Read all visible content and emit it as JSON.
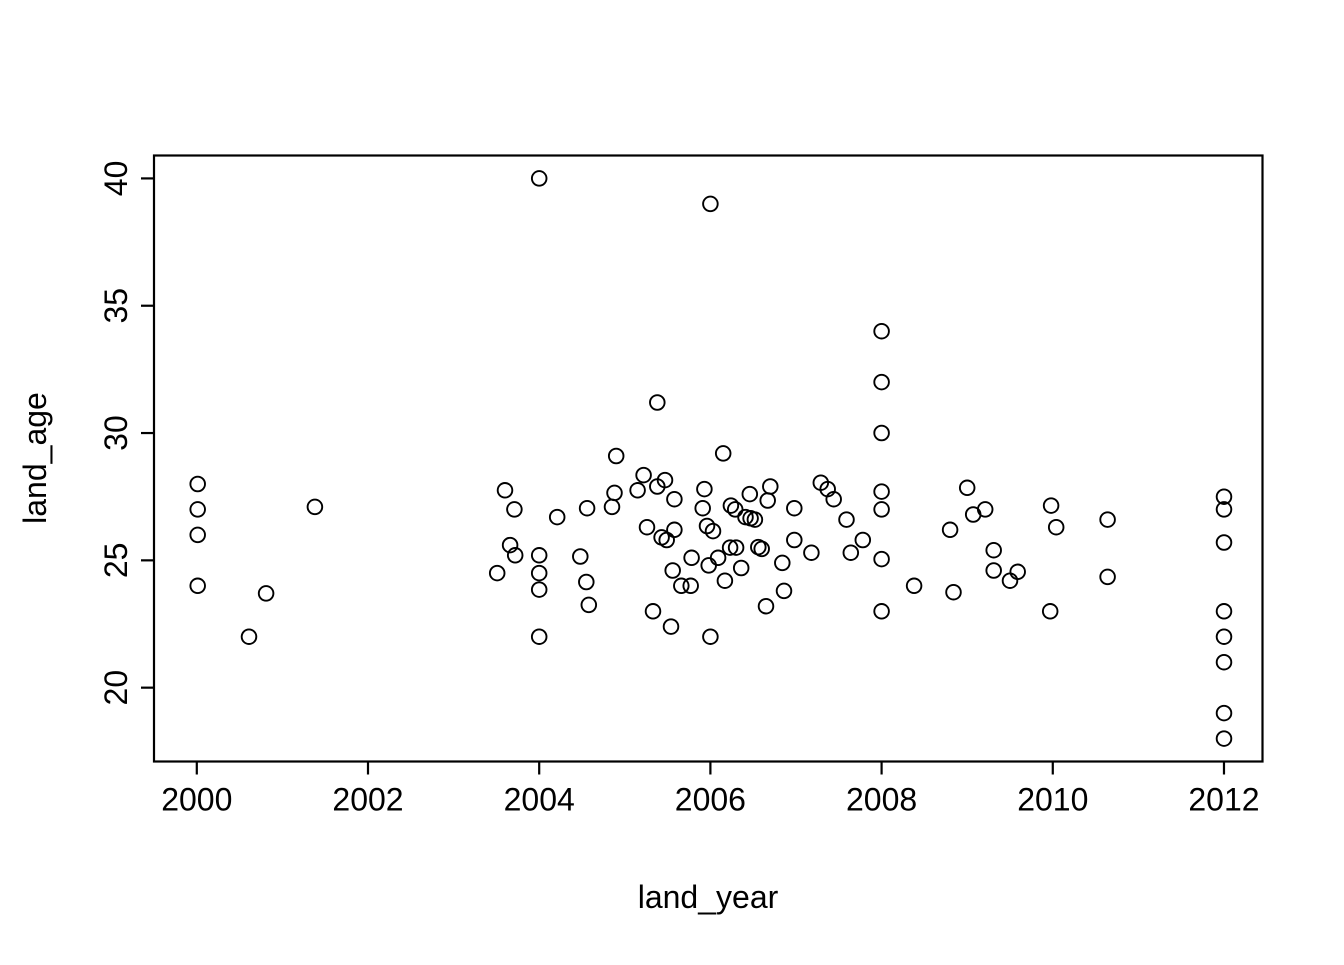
{
  "chart_data": {
    "type": "scatter",
    "title": "",
    "xlabel": "land_year",
    "ylabel": "land_age",
    "x_ticks": [
      2000,
      2002,
      2004,
      2006,
      2008,
      2010,
      2012
    ],
    "y_ticks": [
      20,
      25,
      30,
      35,
      40
    ],
    "xlim": [
      1999.5,
      2012.45
    ],
    "ylim": [
      17.1,
      40.9
    ],
    "grid": false,
    "legend": "none",
    "marker": "open-circle",
    "marker_color": "#000000",
    "background_color": "#ffffff",
    "points": [
      [
        2000.01,
        28.0
      ],
      [
        2000.01,
        27.0
      ],
      [
        2000.01,
        26.0
      ],
      [
        2000.01,
        24.0
      ],
      [
        2000.61,
        22.0
      ],
      [
        2000.81,
        23.7
      ],
      [
        2001.38,
        27.1
      ],
      [
        2003.51,
        24.5
      ],
      [
        2003.6,
        27.75
      ],
      [
        2003.66,
        25.6
      ],
      [
        2003.71,
        27.0
      ],
      [
        2003.72,
        25.2
      ],
      [
        2004.0,
        40.0
      ],
      [
        2004.0,
        25.2
      ],
      [
        2004.0,
        24.5
      ],
      [
        2004.0,
        23.85
      ],
      [
        2004.0,
        22.0
      ],
      [
        2004.21,
        26.7
      ],
      [
        2004.48,
        25.15
      ],
      [
        2004.56,
        27.05
      ],
      [
        2004.55,
        24.15
      ],
      [
        2004.58,
        23.25
      ],
      [
        2004.85,
        27.1
      ],
      [
        2004.88,
        27.65
      ],
      [
        2004.9,
        29.1
      ],
      [
        2005.15,
        27.75
      ],
      [
        2005.22,
        28.35
      ],
      [
        2005.26,
        26.3
      ],
      [
        2005.33,
        23.0
      ],
      [
        2005.38,
        31.2
      ],
      [
        2005.38,
        27.9
      ],
      [
        2005.43,
        25.9
      ],
      [
        2005.47,
        28.15
      ],
      [
        2005.49,
        25.8
      ],
      [
        2005.54,
        22.4
      ],
      [
        2005.56,
        24.6
      ],
      [
        2005.58,
        27.4
      ],
      [
        2005.58,
        26.2
      ],
      [
        2005.66,
        24.0
      ],
      [
        2005.77,
        24.0
      ],
      [
        2005.78,
        25.1
      ],
      [
        2005.91,
        27.05
      ],
      [
        2005.93,
        27.8
      ],
      [
        2005.96,
        26.35
      ],
      [
        2005.98,
        24.8
      ],
      [
        2006.0,
        39.0
      ],
      [
        2006.0,
        22.0
      ],
      [
        2006.03,
        26.15
      ],
      [
        2006.09,
        25.1
      ],
      [
        2006.15,
        29.2
      ],
      [
        2006.17,
        24.2
      ],
      [
        2006.24,
        27.15
      ],
      [
        2006.29,
        27.0
      ],
      [
        2006.23,
        25.5
      ],
      [
        2006.3,
        25.5
      ],
      [
        2006.36,
        24.7
      ],
      [
        2006.41,
        26.7
      ],
      [
        2006.47,
        26.65
      ],
      [
        2006.52,
        26.6
      ],
      [
        2006.46,
        27.6
      ],
      [
        2006.56,
        25.52
      ],
      [
        2006.6,
        25.45
      ],
      [
        2006.65,
        23.2
      ],
      [
        2006.67,
        27.35
      ],
      [
        2006.7,
        27.9
      ],
      [
        2006.84,
        24.9
      ],
      [
        2006.86,
        23.8
      ],
      [
        2006.98,
        27.05
      ],
      [
        2006.98,
        25.8
      ],
      [
        2007.18,
        25.3
      ],
      [
        2007.29,
        28.05
      ],
      [
        2007.37,
        27.8
      ],
      [
        2007.44,
        27.4
      ],
      [
        2007.59,
        26.6
      ],
      [
        2007.64,
        25.3
      ],
      [
        2007.78,
        25.8
      ],
      [
        2008.0,
        34.0
      ],
      [
        2008.0,
        32.0
      ],
      [
        2008.0,
        30.0
      ],
      [
        2008.0,
        27.7
      ],
      [
        2008.0,
        27.0
      ],
      [
        2008.0,
        25.05
      ],
      [
        2008.0,
        23.0
      ],
      [
        2008.38,
        24.0
      ],
      [
        2008.8,
        26.2
      ],
      [
        2008.84,
        23.75
      ],
      [
        2009.0,
        27.85
      ],
      [
        2009.07,
        26.8
      ],
      [
        2009.21,
        27.0
      ],
      [
        2009.31,
        25.4
      ],
      [
        2009.31,
        24.6
      ],
      [
        2009.5,
        24.2
      ],
      [
        2009.59,
        24.55
      ],
      [
        2009.97,
        23.0
      ],
      [
        2009.98,
        27.15
      ],
      [
        2010.04,
        26.3
      ],
      [
        2010.64,
        26.6
      ],
      [
        2010.64,
        24.35
      ],
      [
        2012.0,
        27.5
      ],
      [
        2012.0,
        27.0
      ],
      [
        2012.0,
        25.7
      ],
      [
        2012.0,
        23.0
      ],
      [
        2012.0,
        22.0
      ],
      [
        2012.0,
        21.0
      ],
      [
        2012.0,
        19.0
      ],
      [
        2012.0,
        18.0
      ]
    ]
  }
}
